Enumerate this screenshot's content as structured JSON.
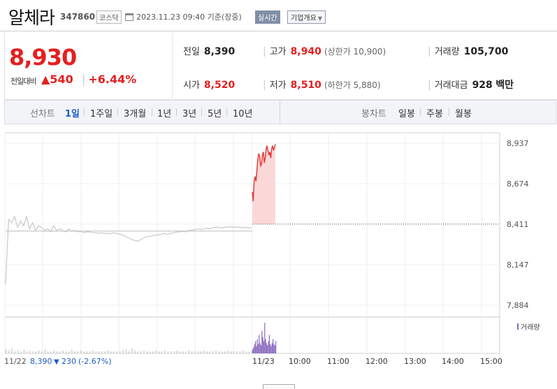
{
  "header": {
    "name": "알체라",
    "code": "347860",
    "market": "코스닥",
    "datetime": "2023.11.23 09:40 기준(장중)",
    "realtime_label": "실시간",
    "company_overview_label": "기업개요"
  },
  "price": {
    "current": "8,930",
    "change_label": "전일대비",
    "change_value": "540",
    "change_percent": "+6.44%",
    "up_color": "#e51f1f"
  },
  "stats": {
    "prev_close_label": "전일",
    "prev_close": "8,390",
    "high_label": "고가",
    "high": "8,940",
    "upper_limit": "(상한가 10,900)",
    "volume_label": "거래량",
    "volume": "105,700",
    "open_label": "시가",
    "open": "8,520",
    "low_label": "저가",
    "low": "8,510",
    "lower_limit": "(하한가 5,880)",
    "amount_label": "거래대금",
    "amount": "928",
    "amount_unit": "백만"
  },
  "tabs": {
    "line_label": "선차트",
    "line_periods": [
      "1일",
      "1주일",
      "3개월",
      "1년",
      "3년",
      "5년",
      "10년"
    ],
    "active_period": "1일",
    "candle_label": "봉차트",
    "candle_periods": [
      "일봉",
      "주봉",
      "월봉"
    ]
  },
  "chart_data": {
    "type": "line",
    "price_ticks": [
      "8,937",
      "8,674",
      "8,411",
      "8,147",
      "7,884"
    ],
    "ylim": [
      7884,
      8937
    ],
    "baseline": 8411,
    "x_ticks": [
      "11/23",
      "10:00",
      "11:00",
      "12:00",
      "13:00",
      "14:00",
      "15:00"
    ],
    "volume_legend": "거래량",
    "prev_day": {
      "date": "11/22",
      "close": "8,390",
      "change": "230",
      "change_pct": "(-2.67%)",
      "price_series": [
        8020,
        8440,
        8420,
        8460,
        8390,
        8430,
        8400,
        8460,
        8380,
        8420,
        8370,
        8400,
        8390,
        8370,
        8380,
        8360,
        8400,
        8370,
        8380,
        8370,
        8360,
        8380,
        8365,
        8370,
        8360,
        8365,
        8355,
        8360,
        8360,
        8355,
        8355,
        8350,
        8355,
        8350,
        8352,
        8348,
        8355,
        8350,
        8345,
        8340,
        8330,
        8320,
        8310,
        8305,
        8300,
        8310,
        8320,
        8330,
        8330,
        8335,
        8340,
        8340,
        8345,
        8350,
        8345,
        8350,
        8355,
        8360,
        8360,
        8365,
        8360,
        8370,
        8370,
        8375,
        8380,
        8375,
        8380,
        8385,
        8380,
        8388,
        8390,
        8390,
        8385,
        8392,
        8390,
        8395,
        8390,
        8393,
        8390,
        8388,
        8390,
        8385,
        8390
      ],
      "volume_series": [
        4,
        3,
        5,
        2,
        3,
        2,
        4,
        2,
        3,
        2,
        2,
        3,
        2,
        4,
        2,
        2,
        3,
        2,
        2,
        3,
        2,
        2,
        4,
        2,
        2,
        3,
        2,
        2,
        2,
        3,
        2,
        2,
        2,
        2,
        3,
        2,
        2,
        2,
        2,
        3,
        4,
        2,
        5,
        3,
        2,
        2,
        3,
        2,
        2,
        2,
        3,
        2,
        2,
        3,
        2,
        2,
        2,
        3,
        2,
        2,
        2,
        3,
        2,
        2,
        2,
        2,
        3,
        2,
        2,
        2,
        3,
        2,
        2,
        2,
        3,
        2,
        2,
        2,
        2,
        3,
        2,
        2,
        3
      ]
    },
    "today": {
      "price_series": [
        8620,
        8560,
        8690,
        8720,
        8690,
        8760,
        8830,
        8870,
        8850,
        8790,
        8800,
        8860,
        8880,
        8810,
        8840,
        8900,
        8920,
        8890,
        8860,
        8880,
        8840,
        8900,
        8920,
        8890,
        8910,
        8930
      ],
      "volume_series": [
        4,
        6,
        9,
        12,
        7,
        14,
        9,
        18,
        10,
        8,
        22,
        16,
        12,
        30,
        14,
        10,
        8,
        12,
        18,
        9,
        7,
        10,
        14,
        9,
        8,
        12
      ]
    },
    "colors": {
      "up_line": "#e23b3b",
      "up_fill": "#fbd8d8",
      "prev_line": "#c8c8c8",
      "volume": "#8a6bbf",
      "prev_volume": "#bbbbbb"
    }
  }
}
